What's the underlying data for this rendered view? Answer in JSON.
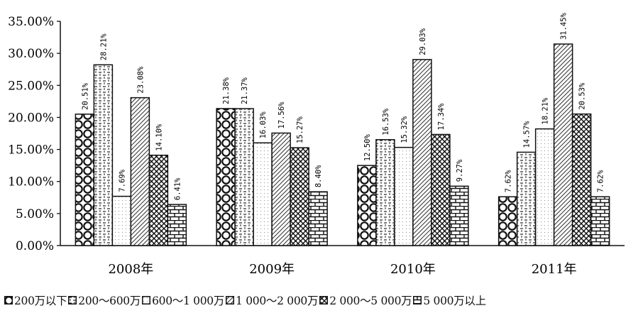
{
  "chart_data": {
    "type": "bar",
    "categories": [
      "2008年",
      "2009年",
      "2010年",
      "2011年"
    ],
    "ylim": [
      0,
      35
    ],
    "yticks": [
      "0.00%",
      "5.00%",
      "10.00%",
      "15.00%",
      "20.00%",
      "25.00%",
      "30.00%",
      "35.00%"
    ],
    "grid": false,
    "legend_position": "bottom",
    "series": [
      {
        "name": "200万以下",
        "values": [
          20.51,
          21.38,
          12.5,
          7.62
        ],
        "labels": [
          "20.51%",
          "21.38%",
          "12.50%",
          "7.62%"
        ],
        "pattern": "circles"
      },
      {
        "name": "200～600万",
        "values": [
          28.21,
          21.37,
          16.53,
          14.57
        ],
        "labels": [
          "28.21%",
          "21.37%",
          "16.53%",
          "14.57%"
        ],
        "pattern": "dashes"
      },
      {
        "name": "600～1 000万",
        "values": [
          7.69,
          16.03,
          15.32,
          18.21
        ],
        "labels": [
          "7.69%",
          "16.03%",
          "15.32%",
          "18.21%"
        ],
        "pattern": "dots"
      },
      {
        "name": "1 000～2 000万",
        "values": [
          23.08,
          17.56,
          29.03,
          31.45
        ],
        "labels": [
          "23.08%",
          "17.56%",
          "29.03%",
          "31.45%"
        ],
        "pattern": "diagonal"
      },
      {
        "name": "2 000～5 000万",
        "values": [
          14.1,
          15.27,
          17.34,
          20.53
        ],
        "labels": [
          "14.10%",
          "15.27%",
          "17.34%",
          "20.53%"
        ],
        "pattern": "crosshatch"
      },
      {
        "name": "5 000万以上",
        "values": [
          6.41,
          8.4,
          9.27,
          7.62
        ],
        "labels": [
          "6.41%",
          "8.40%",
          "9.27%",
          "7.62%"
        ],
        "pattern": "bricks"
      }
    ]
  }
}
